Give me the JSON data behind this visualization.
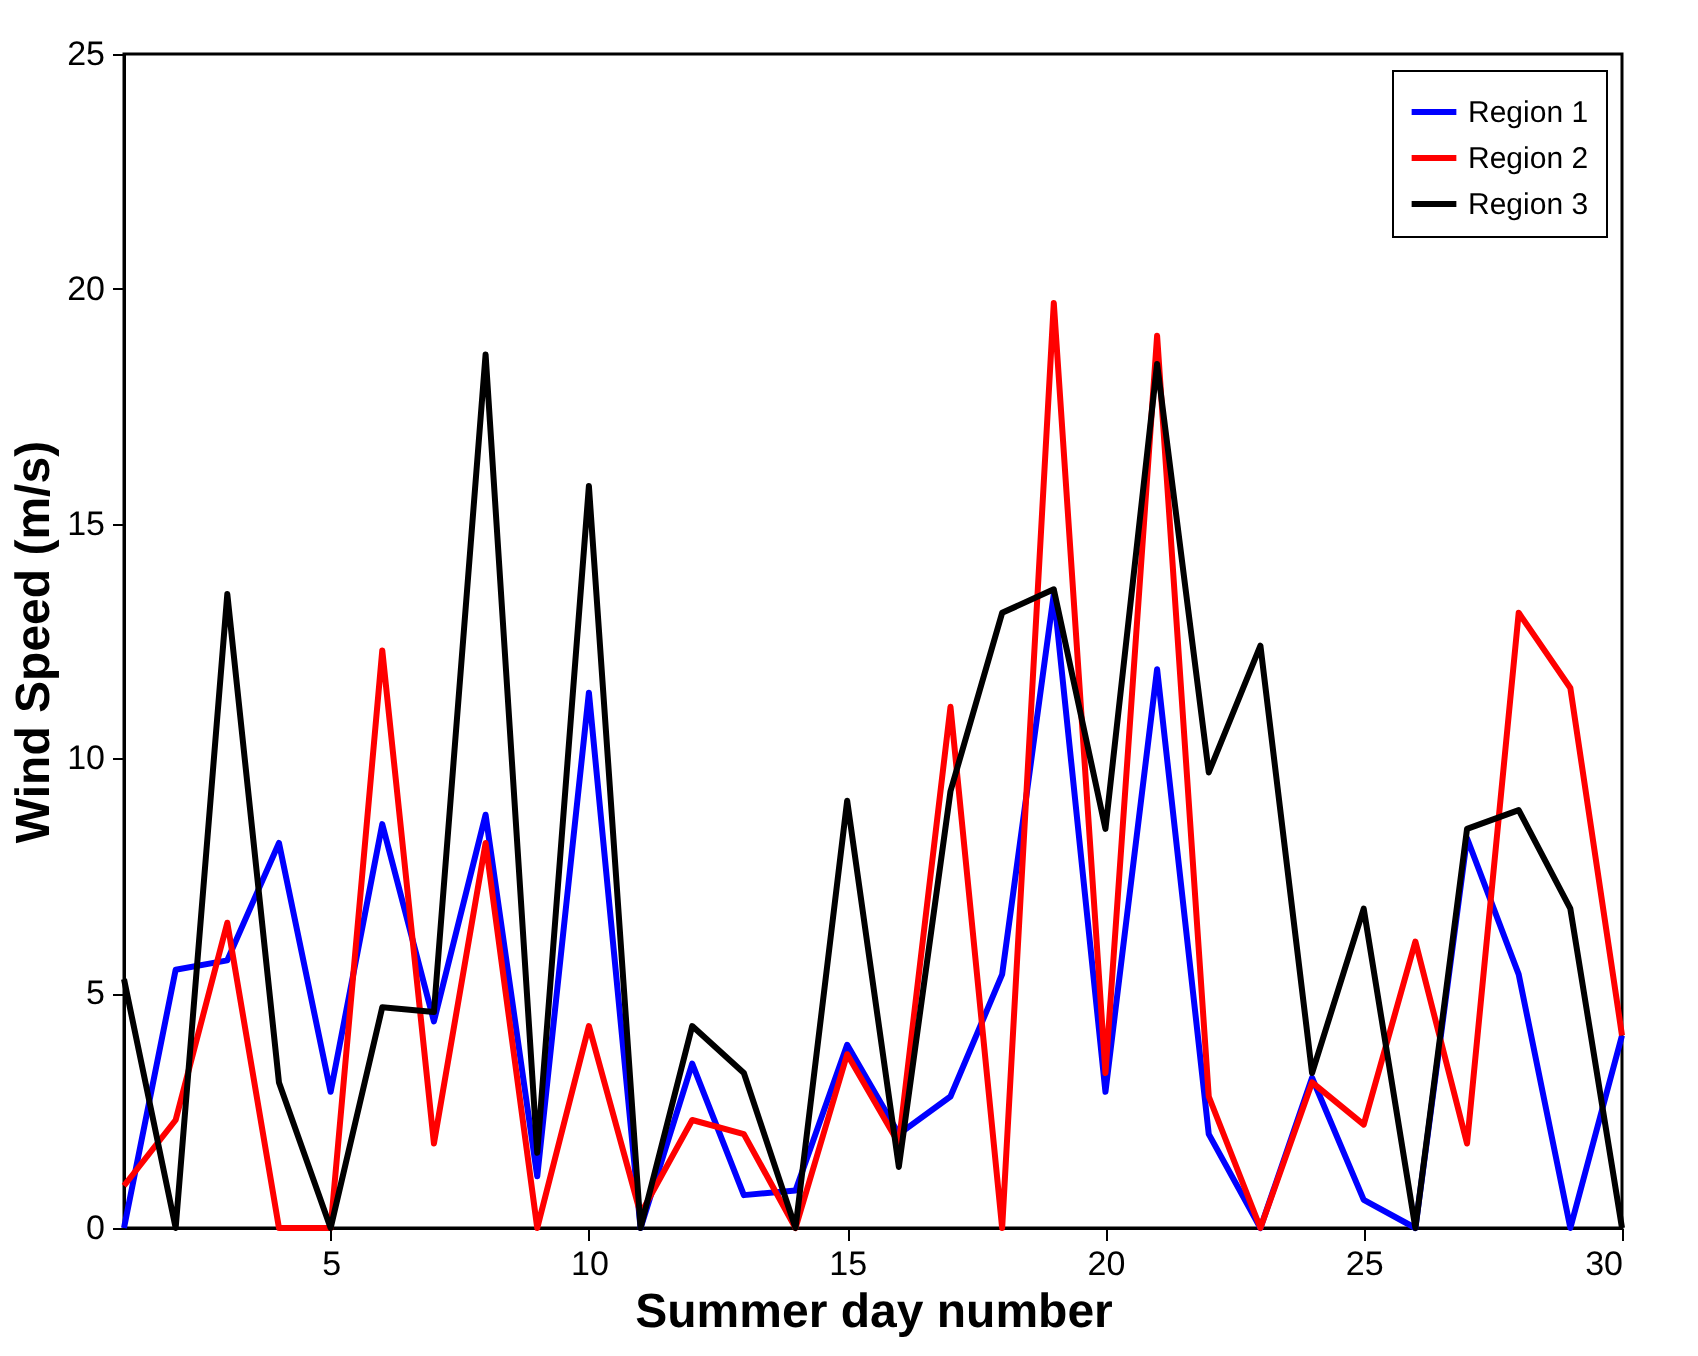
{
  "chart_data": {
    "type": "line",
    "xlabel": "Summer day number",
    "ylabel": "Wind Speed (m/s)",
    "x": [
      1,
      2,
      3,
      4,
      5,
      6,
      7,
      8,
      9,
      10,
      11,
      12,
      13,
      14,
      15,
      16,
      17,
      18,
      19,
      20,
      21,
      22,
      23,
      24,
      25,
      26,
      27,
      28,
      29,
      30
    ],
    "series": [
      {
        "name": "Region 1",
        "color": "#0000ff",
        "values": [
          0,
          5.5,
          5.7,
          8.2,
          2.9,
          8.6,
          4.4,
          8.8,
          1.1,
          11.4,
          0,
          3.5,
          0.7,
          0.8,
          3.9,
          2.0,
          2.8,
          5.4,
          13.5,
          2.9,
          11.9,
          2.0,
          0,
          3.2,
          0.6,
          0,
          8.3,
          5.4,
          0,
          4.1
        ]
      },
      {
        "name": "Region 2",
        "color": "#ff0000",
        "values": [
          0.9,
          2.3,
          6.5,
          0,
          0,
          12.3,
          1.8,
          8.2,
          0,
          4.3,
          0.3,
          2.3,
          2.0,
          0,
          3.7,
          1.8,
          11.1,
          0,
          19.7,
          3.3,
          19.0,
          2.8,
          0,
          3.1,
          2.2,
          6.1,
          1.8,
          13.1,
          11.5,
          4.1
        ]
      },
      {
        "name": "Region 3",
        "color": "#000000",
        "values": [
          5.3,
          0,
          13.5,
          3.1,
          0,
          4.7,
          4.6,
          18.6,
          1.6,
          15.8,
          0,
          4.3,
          3.3,
          0,
          9.1,
          1.3,
          9.3,
          13.1,
          13.6,
          8.5,
          18.4,
          9.7,
          12.4,
          3.3,
          6.8,
          0,
          8.5,
          8.9,
          6.8,
          0
        ]
      }
    ],
    "xlim": [
      1,
      30
    ],
    "xticks": [
      5,
      10,
      15,
      20,
      25,
      30
    ],
    "ylim": [
      0,
      25
    ],
    "yticks": [
      0,
      5,
      10,
      15,
      20,
      25
    ],
    "legend": "top right",
    "grid": false,
    "marker": "none",
    "line_style": "solid"
  }
}
